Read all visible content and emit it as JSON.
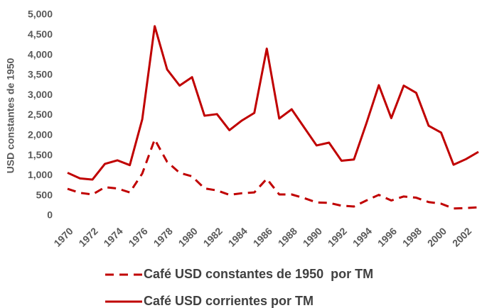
{
  "chart_data": {
    "type": "line",
    "y_label": "USD constantes de 1950",
    "x": [
      1970,
      1971,
      1972,
      1973,
      1974,
      1975,
      1976,
      1977,
      1978,
      1979,
      1980,
      1981,
      1982,
      1983,
      1984,
      1985,
      1986,
      1987,
      1988,
      1989,
      1990,
      1991,
      1992,
      1993,
      1994,
      1995,
      1996,
      1997,
      1998,
      1999,
      2000,
      2001,
      2002,
      2003
    ],
    "xlim": [
      1970,
      2003
    ],
    "xticks": [
      1970,
      1972,
      1974,
      1976,
      1978,
      1980,
      1982,
      1984,
      1986,
      1988,
      1990,
      1992,
      1994,
      1996,
      1998,
      2000,
      2002
    ],
    "ylim": [
      0,
      5000
    ],
    "yticks": [
      0,
      500,
      {
        "value": 1000,
        "label": "1,000"
      },
      {
        "value": 1500,
        "label": "1,500"
      },
      {
        "value": 2000,
        "label": "2,000"
      },
      {
        "value": 2500,
        "label": "2,500"
      },
      {
        "value": 3000,
        "label": "3,000"
      },
      {
        "value": 3500,
        "label": "3,500"
      },
      {
        "value": 4000,
        "label": "4,000"
      },
      {
        "value": 4500,
        "label": "4,500"
      },
      {
        "value": 5000,
        "label": "5,000"
      }
    ],
    "grid": false,
    "legend": "bottom",
    "series": [
      {
        "name": "Café USD constantes de 1950  por TM",
        "color": "#c00000",
        "dash": "dashed",
        "values": [
          670,
          570,
          530,
          710,
          680,
          580,
          1050,
          1900,
          1340,
          1070,
          980,
          680,
          630,
          520,
          560,
          580,
          920,
          530,
          530,
          440,
          330,
          320,
          250,
          230,
          380,
          520,
          380,
          480,
          450,
          340,
          300,
          180,
          190,
          210
        ]
      },
      {
        "name": "Café USD corrientes por TM",
        "color": "#c00000",
        "dash": "solid",
        "values": [
          1070,
          930,
          900,
          1290,
          1380,
          1260,
          2400,
          4720,
          3640,
          3240,
          3450,
          2490,
          2530,
          2130,
          2370,
          2560,
          4160,
          2420,
          2650,
          2200,
          1750,
          1820,
          1370,
          1400,
          2300,
          3250,
          2430,
          3240,
          3060,
          2240,
          2070,
          1270,
          1410,
          1590
        ]
      }
    ]
  }
}
